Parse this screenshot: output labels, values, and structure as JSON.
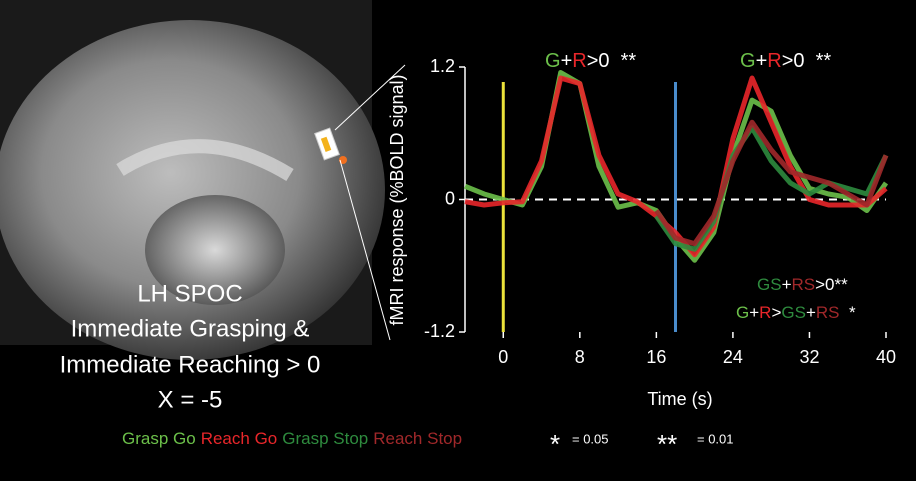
{
  "chart_data": {
    "type": "line",
    "y_label": "fMRI  response (%BOLD signal)",
    "x_label": "Time (s)",
    "x": [
      -4,
      -2,
      0,
      2,
      4,
      6,
      8,
      10,
      12,
      14,
      16,
      18,
      20,
      22,
      24,
      26,
      28,
      30,
      32,
      34,
      36,
      38,
      40
    ],
    "xlim": [
      -4,
      40
    ],
    "xticks": [
      0,
      8,
      16,
      24,
      32,
      40
    ],
    "ylim": [
      -1.2,
      1.2
    ],
    "yticks": [
      -1.2,
      0,
      1.2
    ],
    "zero_line": true,
    "vlines": [
      {
        "x": 0,
        "color": "#ece23a"
      },
      {
        "x": 18,
        "color": "#4a8ccc"
      }
    ],
    "series": [
      {
        "name": "Grasp Go",
        "color": "#6cc04a",
        "values": [
          0.12,
          0.05,
          0.0,
          -0.05,
          0.3,
          1.15,
          1.05,
          0.3,
          -0.07,
          -0.03,
          -0.1,
          -0.35,
          -0.55,
          -0.3,
          0.4,
          0.9,
          0.8,
          0.4,
          0.1,
          0.05,
          0.02,
          -0.1,
          0.15
        ]
      },
      {
        "name": "Reach Go",
        "color": "#e8262a",
        "values": [
          -0.02,
          -0.05,
          -0.03,
          -0.02,
          0.35,
          1.1,
          1.05,
          0.4,
          0.05,
          -0.02,
          -0.15,
          -0.3,
          -0.5,
          -0.25,
          0.55,
          1.1,
          0.7,
          0.3,
          0.0,
          -0.05,
          -0.05,
          -0.05,
          0.1
        ]
      },
      {
        "name": "Grasp Stop",
        "color": "#2e8b3e",
        "values": [
          null,
          null,
          null,
          null,
          null,
          null,
          null,
          null,
          null,
          null,
          -0.15,
          -0.4,
          -0.45,
          -0.2,
          0.4,
          0.65,
          0.35,
          0.15,
          0.05,
          0.15,
          0.1,
          0.05,
          0.4
        ]
      },
      {
        "name": "Reach Stop",
        "color": "#a0282a",
        "values": [
          null,
          null,
          null,
          null,
          null,
          null,
          null,
          null,
          null,
          null,
          -0.1,
          -0.35,
          -0.4,
          -0.15,
          0.35,
          0.7,
          0.45,
          0.25,
          0.2,
          0.15,
          0.05,
          -0.05,
          0.4
        ]
      }
    ],
    "annotations": [
      {
        "parts": [
          {
            "text": "G",
            "color": "#6cc04a"
          },
          {
            "text": "+",
            "color": "#ffffff"
          },
          {
            "text": "R",
            "color": "#e8262a"
          },
          {
            "text": ">0",
            "color": "#ffffff"
          },
          {
            "text": "  **",
            "color": "#ffffff"
          }
        ]
      },
      {
        "parts": [
          {
            "text": "G",
            "color": "#6cc04a"
          },
          {
            "text": "+",
            "color": "#ffffff"
          },
          {
            "text": "R",
            "color": "#e8262a"
          },
          {
            "text": ">0",
            "color": "#ffffff"
          },
          {
            "text": "  **",
            "color": "#ffffff"
          }
        ]
      },
      {
        "parts": [
          {
            "text": "GS",
            "color": "#2e8b3e"
          },
          {
            "text": "+",
            "color": "#ffffff"
          },
          {
            "text": "RS",
            "color": "#a0282a"
          },
          {
            "text": ">0",
            "color": "#ffffff"
          },
          {
            "text": "**",
            "color": "#ffffff"
          }
        ]
      },
      {
        "parts": [
          {
            "text": "G",
            "color": "#6cc04a"
          },
          {
            "text": "+",
            "color": "#ffffff"
          },
          {
            "text": "R",
            "color": "#e8262a"
          },
          {
            "text": ">",
            "color": "#ffffff"
          },
          {
            "text": "GS",
            "color": "#2e8b3e"
          },
          {
            "text": "+",
            "color": "#ffffff"
          },
          {
            "text": "RS",
            "color": "#a0282a"
          },
          {
            "text": "  *",
            "color": "#ffffff"
          }
        ]
      }
    ],
    "significance": [
      {
        "symbol": "*",
        "label": "= 0.05"
      },
      {
        "symbol": "**",
        "label": "= 0.01"
      }
    ]
  },
  "image_caption": [
    "LH SPOC",
    "Immediate Grasping &",
    "Immediate Reaching > 0",
    "X = -5"
  ]
}
